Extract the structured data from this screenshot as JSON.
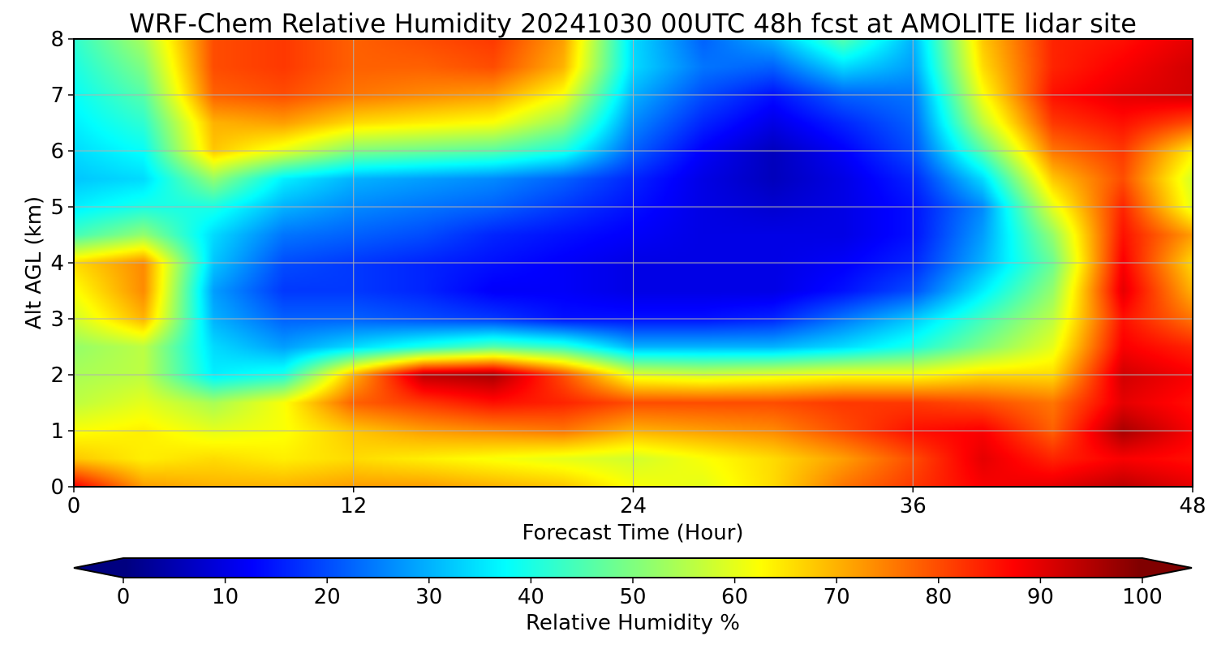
{
  "chart_data": {
    "type": "heatmap",
    "title": "WRF-Chem Relative Humidity 20241030 00UTC 48h fcst at AMOLITE lidar site",
    "xlabel": "Forecast Time (Hour)",
    "ylabel": "Alt AGL (km)",
    "xlim": [
      0,
      48
    ],
    "ylim": [
      0,
      8
    ],
    "x_ticks": [
      0,
      12,
      24,
      36,
      48
    ],
    "y_ticks": [
      0,
      1,
      2,
      3,
      4,
      5,
      6,
      7,
      8
    ],
    "grid": true,
    "colormap": "jet",
    "x": [
      0,
      3,
      6,
      9,
      12,
      15,
      18,
      21,
      24,
      27,
      30,
      33,
      36,
      39,
      42,
      45,
      48
    ],
    "y": [
      0,
      0.5,
      1,
      1.5,
      2,
      2.5,
      3,
      3.5,
      4,
      4.5,
      5,
      5.5,
      6,
      6.5,
      7,
      7.5,
      8
    ],
    "z": [
      [
        88,
        72,
        70,
        70,
        72,
        72,
        70,
        68,
        62,
        60,
        66,
        76,
        82,
        88,
        90,
        94,
        90
      ],
      [
        68,
        64,
        66,
        64,
        66,
        64,
        62,
        60,
        58,
        62,
        66,
        72,
        80,
        90,
        84,
        88,
        86
      ],
      [
        62,
        64,
        60,
        62,
        68,
        72,
        74,
        76,
        70,
        72,
        74,
        80,
        86,
        88,
        78,
        96,
        88
      ],
      [
        56,
        60,
        54,
        62,
        78,
        82,
        86,
        84,
        80,
        80,
        80,
        82,
        82,
        80,
        76,
        90,
        86
      ],
      [
        54,
        56,
        36,
        40,
        70,
        94,
        96,
        80,
        60,
        58,
        60,
        62,
        62,
        66,
        66,
        92,
        88
      ],
      [
        52,
        56,
        34,
        28,
        34,
        40,
        46,
        42,
        30,
        30,
        30,
        34,
        40,
        50,
        60,
        88,
        84
      ],
      [
        58,
        70,
        30,
        22,
        22,
        20,
        18,
        14,
        14,
        14,
        16,
        24,
        32,
        44,
        56,
        86,
        76
      ],
      [
        62,
        74,
        28,
        18,
        18,
        16,
        12,
        12,
        10,
        10,
        10,
        14,
        20,
        36,
        52,
        90,
        70
      ],
      [
        66,
        74,
        32,
        20,
        18,
        16,
        14,
        12,
        10,
        10,
        10,
        12,
        16,
        30,
        48,
        88,
        66
      ],
      [
        44,
        52,
        34,
        24,
        22,
        20,
        16,
        14,
        12,
        10,
        10,
        10,
        14,
        28,
        52,
        86,
        72
      ],
      [
        36,
        40,
        40,
        30,
        26,
        24,
        22,
        18,
        14,
        10,
        8,
        10,
        14,
        26,
        60,
        84,
        60
      ],
      [
        32,
        34,
        52,
        36,
        30,
        28,
        26,
        22,
        16,
        10,
        6,
        10,
        16,
        34,
        68,
        80,
        58
      ],
      [
        34,
        38,
        68,
        60,
        50,
        48,
        46,
        40,
        22,
        12,
        6,
        12,
        20,
        46,
        76,
        82,
        64
      ],
      [
        36,
        42,
        70,
        72,
        66,
        64,
        62,
        52,
        26,
        16,
        10,
        16,
        22,
        56,
        82,
        86,
        80
      ],
      [
        38,
        46,
        78,
        80,
        76,
        74,
        72,
        62,
        30,
        20,
        14,
        22,
        24,
        62,
        86,
        90,
        92
      ],
      [
        40,
        50,
        80,
        82,
        78,
        78,
        80,
        70,
        34,
        24,
        22,
        34,
        28,
        66,
        84,
        88,
        92
      ],
      [
        42,
        54,
        80,
        82,
        78,
        80,
        82,
        72,
        34,
        22,
        30,
        46,
        30,
        68,
        84,
        86,
        90
      ]
    ],
    "colorbar": {
      "label": "Relative Humidity %",
      "ticks": [
        0,
        10,
        20,
        30,
        40,
        50,
        60,
        70,
        80,
        90,
        100
      ],
      "min": 0,
      "max": 100,
      "extend": "both",
      "orientation": "horizontal"
    }
  }
}
